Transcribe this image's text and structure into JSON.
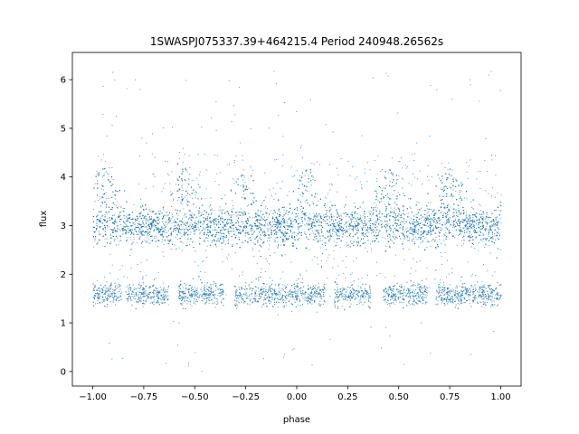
{
  "chart_data": {
    "type": "scatter",
    "title": "1SWASPJ075337.39+464215.4 Period 240948.26562s",
    "xlabel": "phase",
    "ylabel": "flux",
    "xlim": [
      -1.1,
      1.1
    ],
    "ylim": [
      -0.3,
      6.56
    ],
    "xticks": [
      -1.0,
      -0.75,
      -0.5,
      -0.25,
      0.0,
      0.25,
      0.5,
      0.75,
      1.0
    ],
    "xtick_labels": [
      "−1.00",
      "−0.75",
      "−0.50",
      "−0.25",
      "0.00",
      "0.25",
      "0.50",
      "0.75",
      "1.00"
    ],
    "yticks": [
      0,
      1,
      2,
      3,
      4,
      5,
      6
    ],
    "ytick_labels": [
      "0",
      "1",
      "2",
      "3",
      "4",
      "5",
      "6"
    ],
    "grid": false,
    "point_color": "#1f77b4",
    "series": [
      {
        "phase_range": [
          -1.0,
          1.0
        ],
        "upper_band": {
          "center_flux": 3.0,
          "spread": 0.2,
          "bump_phases": [
            -0.95,
            -0.55,
            -0.25,
            0.05,
            0.45,
            0.75
          ],
          "bump_peak_flux": 4.2
        },
        "lower_band": {
          "center_flux": 1.6,
          "spread": 0.12,
          "gaps": [
            [
              -0.86,
              -0.84
            ],
            [
              -0.63,
              -0.58
            ],
            [
              -0.36,
              -0.31
            ],
            [
              0.14,
              0.18
            ],
            [
              0.36,
              0.42
            ],
            [
              0.64,
              0.68
            ]
          ]
        },
        "outliers_flux_range": [
          0.0,
          6.2
        ]
      }
    ]
  }
}
